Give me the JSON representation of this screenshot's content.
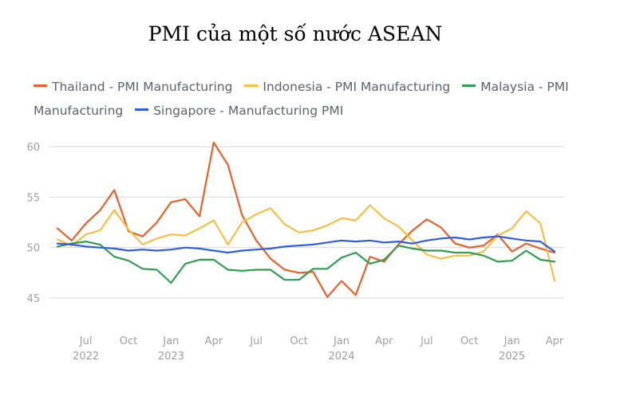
{
  "chart_data": {
    "type": "line",
    "title": "PMI của một số nước ASEAN",
    "xlabel": "",
    "ylabel": "",
    "ylim": [
      45,
      60
    ],
    "yticks": [
      45,
      50,
      55,
      60
    ],
    "grid": true,
    "legend_position": "top",
    "x_tick_labels": [
      {
        "month": "Jul",
        "year": "2022",
        "index": 2
      },
      {
        "month": "Oct",
        "year": "",
        "index": 5
      },
      {
        "month": "Jan",
        "year": "2023",
        "index": 8
      },
      {
        "month": "Apr",
        "year": "",
        "index": 11
      },
      {
        "month": "Jul",
        "year": "",
        "index": 14
      },
      {
        "month": "Oct",
        "year": "",
        "index": 17
      },
      {
        "month": "Jan",
        "year": "2024",
        "index": 20
      },
      {
        "month": "Apr",
        "year": "",
        "index": 23
      },
      {
        "month": "Jul",
        "year": "",
        "index": 26
      },
      {
        "month": "Oct",
        "year": "",
        "index": 29
      },
      {
        "month": "Jan",
        "year": "2025",
        "index": 32
      },
      {
        "month": "Apr",
        "year": "",
        "index": 35
      }
    ],
    "x": [
      "2022-05",
      "2022-06",
      "2022-07",
      "2022-08",
      "2022-09",
      "2022-10",
      "2022-11",
      "2022-12",
      "2023-01",
      "2023-02",
      "2023-03",
      "2023-04",
      "2023-05",
      "2023-06",
      "2023-07",
      "2023-08",
      "2023-09",
      "2023-10",
      "2023-11",
      "2023-12",
      "2024-01",
      "2024-02",
      "2024-03",
      "2024-04",
      "2024-05",
      "2024-06",
      "2024-07",
      "2024-08",
      "2024-09",
      "2024-10",
      "2024-11",
      "2024-12",
      "2025-01",
      "2025-02",
      "2025-03",
      "2025-04"
    ],
    "series": [
      {
        "name": "Thailand - PMI Manufacturing",
        "color": "#e8602c",
        "values": [
          51.9,
          50.7,
          52.4,
          53.7,
          55.7,
          51.6,
          51.1,
          52.5,
          54.5,
          54.8,
          53.1,
          60.4,
          58.2,
          53.2,
          50.7,
          48.9,
          47.8,
          47.5,
          47.6,
          45.1,
          46.7,
          45.3,
          49.1,
          48.6,
          50.3,
          51.7,
          52.8,
          52.0,
          50.4,
          50.0,
          50.2,
          51.3,
          49.6,
          50.4,
          49.9,
          49.5
        ]
      },
      {
        "name": "Indonesia - PMI Manufacturing",
        "color": "#f5c043",
        "values": [
          50.8,
          50.2,
          51.3,
          51.7,
          53.7,
          51.8,
          50.3,
          50.9,
          51.3,
          51.2,
          51.9,
          52.7,
          50.3,
          52.5,
          53.3,
          53.9,
          52.3,
          51.5,
          51.7,
          52.2,
          52.9,
          52.7,
          54.2,
          52.9,
          52.1,
          50.7,
          49.3,
          48.9,
          49.2,
          49.2,
          49.6,
          51.2,
          51.9,
          53.6,
          52.4,
          46.7
        ]
      },
      {
        "name": "Malaysia - PMI Manufacturing",
        "color": "#2f9e52",
        "values": [
          50.1,
          50.4,
          50.6,
          50.3,
          49.1,
          48.7,
          47.9,
          47.8,
          46.5,
          48.4,
          48.8,
          48.8,
          47.8,
          47.7,
          47.8,
          47.8,
          46.8,
          46.8,
          47.9,
          47.9,
          49.0,
          49.5,
          48.4,
          48.8,
          50.2,
          49.9,
          49.7,
          49.7,
          49.5,
          49.5,
          49.2,
          48.6,
          48.7,
          49.7,
          48.8,
          48.6
        ]
      },
      {
        "name": "Singapore - Manufacturing PMI",
        "color": "#2f5fe0",
        "values": [
          50.4,
          50.3,
          50.1,
          50.0,
          49.9,
          49.7,
          49.8,
          49.7,
          49.8,
          50.0,
          49.9,
          49.7,
          49.5,
          49.7,
          49.8,
          49.9,
          50.1,
          50.2,
          50.3,
          50.5,
          50.7,
          50.6,
          50.7,
          50.5,
          50.6,
          50.4,
          50.7,
          50.9,
          51.0,
          50.8,
          51.0,
          51.1,
          50.9,
          50.7,
          50.6,
          49.6
        ]
      }
    ]
  }
}
